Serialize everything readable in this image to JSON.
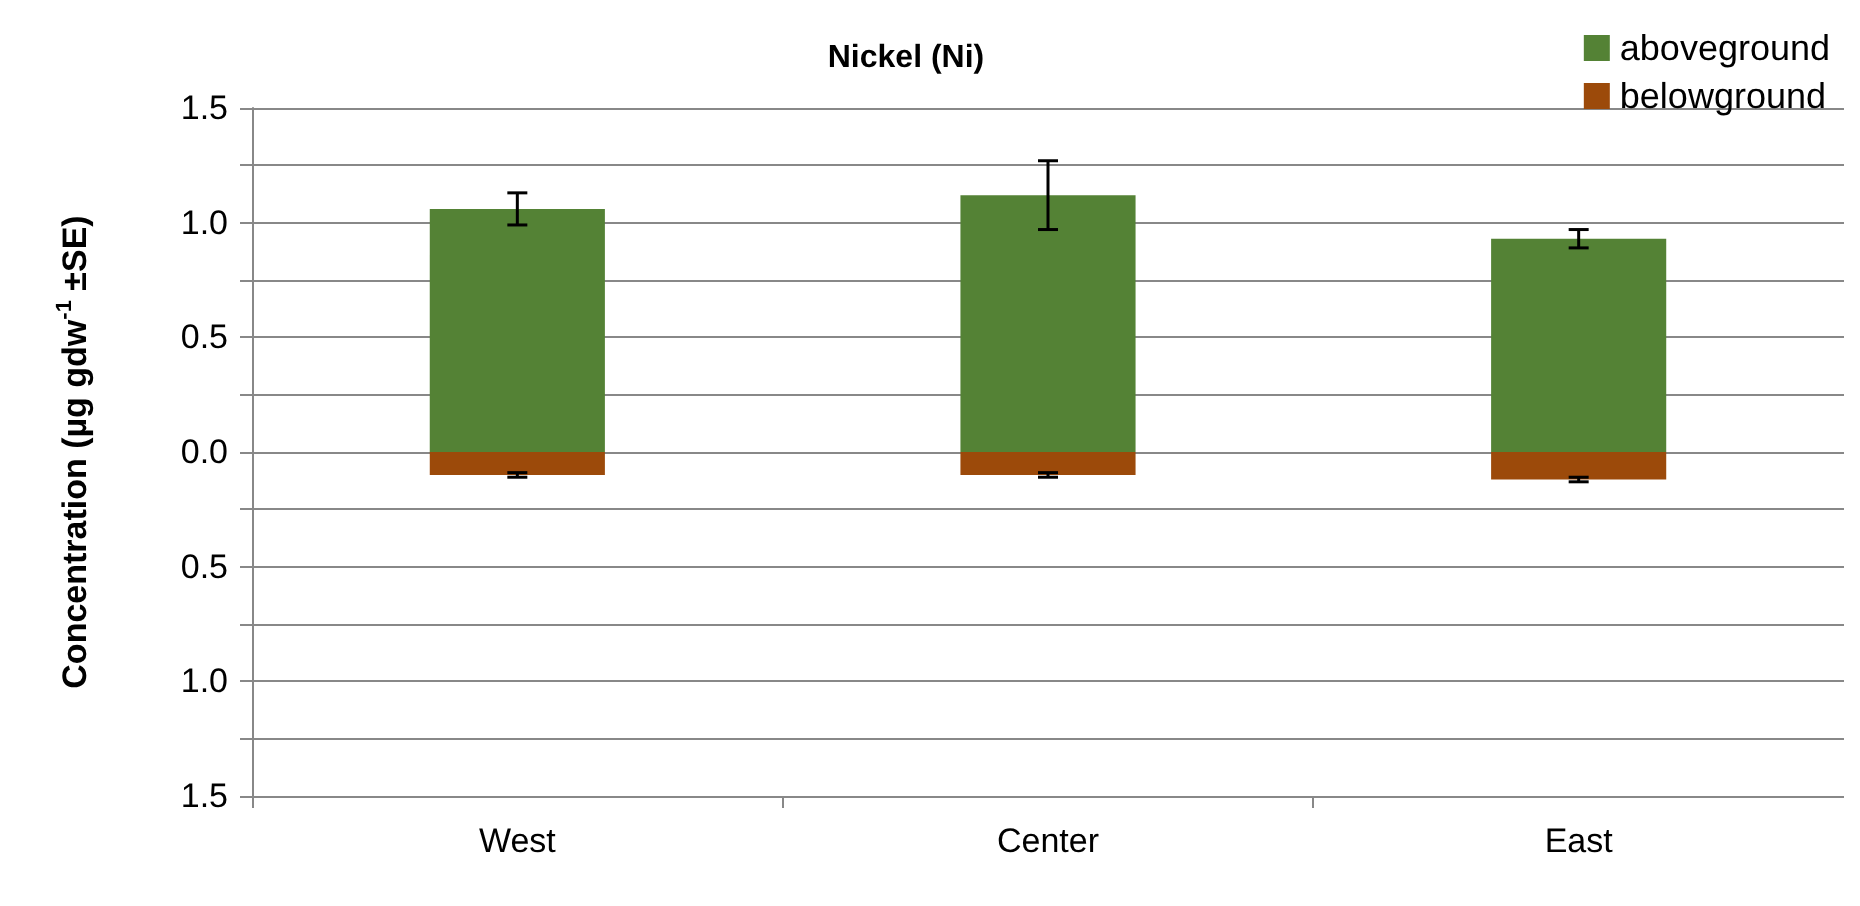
{
  "chart_data": {
    "type": "bar",
    "title": "Nickel (Ni)",
    "ylabel": "Concentration (µg gdw$^{-1}$ ±SE)",
    "categories": [
      "West",
      "Center",
      "East"
    ],
    "stacked": true,
    "series": [
      {
        "name": "aboveground",
        "color": "#548235",
        "values": [
          1.06,
          1.12,
          0.93
        ],
        "errors": [
          0.07,
          0.15,
          0.04
        ]
      },
      {
        "name": "belowground",
        "color": "#9c4a0a",
        "values": [
          -0.1,
          -0.1,
          -0.12
        ],
        "errors": [
          0.01,
          0.01,
          0.01
        ]
      }
    ],
    "ylim": [
      -1.5,
      1.5
    ],
    "yticks": [
      {
        "value": -1.5,
        "label": "1.5"
      },
      {
        "value": -1.25,
        "label": null
      },
      {
        "value": -1,
        "label": "1.0"
      },
      {
        "value": -0.75,
        "label": null
      },
      {
        "value": -0.5,
        "label": "0.5"
      },
      {
        "value": -0.25,
        "label": null
      },
      {
        "value": 0,
        "label": "0.0"
      },
      {
        "value": 0.25,
        "label": null
      },
      {
        "value": 0.5,
        "label": "0.5"
      },
      {
        "value": 0.75,
        "label": null
      },
      {
        "value": 1,
        "label": "1.0"
      },
      {
        "value": 1.25,
        "label": null
      },
      {
        "value": 1.5,
        "label": "1.5"
      }
    ],
    "grid": "y",
    "legend": "top right"
  }
}
